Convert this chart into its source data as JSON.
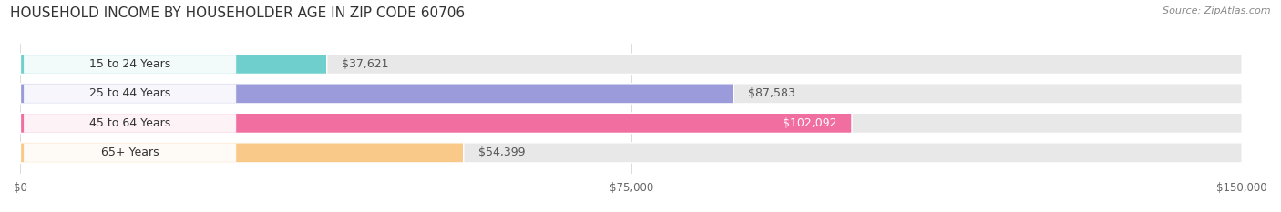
{
  "title": "HOUSEHOLD INCOME BY HOUSEHOLDER AGE IN ZIP CODE 60706",
  "source": "Source: ZipAtlas.com",
  "categories": [
    "15 to 24 Years",
    "25 to 44 Years",
    "45 to 64 Years",
    "65+ Years"
  ],
  "values": [
    37621,
    87583,
    102092,
    54399
  ],
  "bar_colors": [
    "#6ecfcc",
    "#9b9bdb",
    "#f06ea0",
    "#f9c98a"
  ],
  "bar_bg_color": "#e8e8e8",
  "value_labels": [
    "$37,621",
    "$87,583",
    "$102,092",
    "$54,399"
  ],
  "value_label_inside": [
    false,
    false,
    true,
    false
  ],
  "xlim": [
    0,
    150000
  ],
  "xticks": [
    0,
    75000,
    150000
  ],
  "xtick_labels": [
    "$0",
    "$75,000",
    "$150,000"
  ],
  "title_fontsize": 11,
  "source_fontsize": 8,
  "label_fontsize": 9,
  "value_fontsize": 9,
  "figsize": [
    14.06,
    2.33
  ],
  "dpi": 100
}
